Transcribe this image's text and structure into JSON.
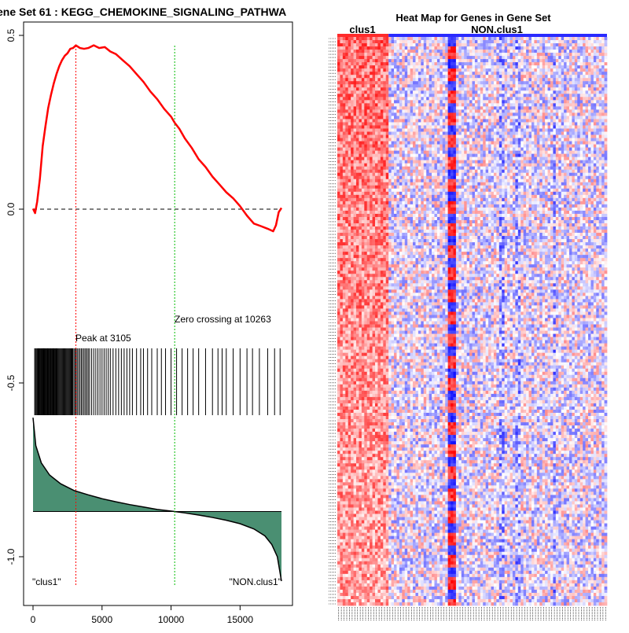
{
  "chart_data": [
    {
      "type": "line",
      "title": "ene Set  61 : KEGG_CHEMOKINE_SIGNALING_PATHWA",
      "xlabel": "",
      "ylabel": "",
      "xlim": [
        0,
        18000
      ],
      "ylim": [
        -1.1,
        0.52
      ],
      "x_ticks": [
        0,
        5000,
        10000,
        15000
      ],
      "y_ticks": [
        -1.0,
        -0.5,
        0.0,
        0.5
      ],
      "y_tick_labels": [
        "-1.0",
        "-0.5",
        "0.0",
        "0.5"
      ],
      "series": [
        {
          "name": "",
          "color": "#ff0000",
          "points": [
            [
              0,
              0
            ],
            [
              150,
              -0.01
            ],
            [
              300,
              0.02
            ],
            [
              500,
              0.09
            ],
            [
              700,
              0.18
            ],
            [
              900,
              0.24
            ],
            [
              1100,
              0.29
            ],
            [
              1300,
              0.33
            ],
            [
              1500,
              0.36
            ],
            [
              1700,
              0.39
            ],
            [
              1900,
              0.41
            ],
            [
              2100,
              0.43
            ],
            [
              2300,
              0.44
            ],
            [
              2500,
              0.45
            ],
            [
              2700,
              0.46
            ],
            [
              2900,
              0.465
            ],
            [
              3105,
              0.47
            ],
            [
              3400,
              0.465
            ],
            [
              3700,
              0.46
            ],
            [
              4000,
              0.465
            ],
            [
              4400,
              0.47
            ],
            [
              4800,
              0.465
            ],
            [
              5200,
              0.465
            ],
            [
              5600,
              0.455
            ],
            [
              6000,
              0.445
            ],
            [
              6500,
              0.43
            ],
            [
              7000,
              0.41
            ],
            [
              7500,
              0.39
            ],
            [
              8000,
              0.365
            ],
            [
              8500,
              0.34
            ],
            [
              9000,
              0.315
            ],
            [
              9500,
              0.29
            ],
            [
              10000,
              0.265
            ],
            [
              10263,
              0.25
            ],
            [
              10600,
              0.23
            ],
            [
              11000,
              0.205
            ],
            [
              11500,
              0.175
            ],
            [
              12000,
              0.145
            ],
            [
              12500,
              0.12
            ],
            [
              13000,
              0.095
            ],
            [
              13500,
              0.07
            ],
            [
              14000,
              0.05
            ],
            [
              14500,
              0.03
            ],
            [
              15000,
              0.01
            ],
            [
              15500,
              -0.02
            ],
            [
              16000,
              -0.04
            ],
            [
              16500,
              -0.05
            ],
            [
              17000,
              -0.055
            ],
            [
              17400,
              -0.065
            ],
            [
              17600,
              -0.045
            ],
            [
              17800,
              -0.01
            ],
            [
              18000,
              0.005
            ]
          ]
        }
      ],
      "reference_lines": {
        "zero_line": 0,
        "peak_x": 3105,
        "zero_crossing_x": 10263,
        "peak_color": "#ff0000",
        "zero_crossing_color": "#00bb00"
      },
      "annotations": {
        "peak": "Peak at 3105",
        "zero_crossing": "Zero crossing at 10263",
        "left_class": "\"clus1\"",
        "right_class": "\"NON.clus1\""
      },
      "hit_positions": [
        120,
        180,
        240,
        300,
        350,
        400,
        450,
        500,
        550,
        600,
        640,
        690,
        740,
        790,
        830,
        880,
        930,
        980,
        1030,
        1080,
        1130,
        1180,
        1230,
        1280,
        1330,
        1380,
        1430,
        1480,
        1530,
        1580,
        1620,
        1680,
        1740,
        1800,
        1860,
        1920,
        1980,
        2040,
        2100,
        2160,
        2220,
        2280,
        2340,
        2400,
        2460,
        2520,
        2580,
        2640,
        2700,
        2760,
        2820,
        2880,
        2960,
        3040,
        3120,
        3200,
        3300,
        3400,
        3500,
        3600,
        3700,
        3800,
        3900,
        4000,
        4100,
        4250,
        4400,
        4550,
        4700,
        4850,
        5000,
        5150,
        5300,
        5450,
        5600,
        5800,
        6000,
        6200,
        6400,
        6600,
        6800,
        7000,
        7200,
        7500,
        7800,
        8000,
        8300,
        8600,
        9000,
        9300,
        9600,
        10000,
        10400,
        10800,
        11200,
        11600,
        12000,
        12500,
        13000,
        13400,
        13700,
        14000,
        14500,
        15000,
        15500,
        15900,
        16400,
        17000,
        17500,
        17900
      ],
      "ranked_metric": {
        "color": "#4a8f72",
        "points": [
          [
            0,
            -0.6
          ],
          [
            200,
            -0.68
          ],
          [
            600,
            -0.73
          ],
          [
            1200,
            -0.765
          ],
          [
            2000,
            -0.79
          ],
          [
            3000,
            -0.81
          ],
          [
            4000,
            -0.822
          ],
          [
            5000,
            -0.833
          ],
          [
            6000,
            -0.842
          ],
          [
            7000,
            -0.85
          ],
          [
            8000,
            -0.857
          ],
          [
            9000,
            -0.864
          ],
          [
            10263,
            -0.87
          ],
          [
            11000,
            -0.874
          ],
          [
            12000,
            -0.88
          ],
          [
            13000,
            -0.887
          ],
          [
            14000,
            -0.895
          ],
          [
            15000,
            -0.905
          ],
          [
            16000,
            -0.92
          ],
          [
            16800,
            -0.94
          ],
          [
            17300,
            -0.965
          ],
          [
            17700,
            -1.0
          ],
          [
            18000,
            -1.07
          ]
        ]
      }
    },
    {
      "type": "heatmap",
      "title": "Heat Map for Genes in Gene Set",
      "groups": [
        "clus1",
        "NON.clus1"
      ],
      "group_colors": [
        "#ff2a2a",
        "#2a2aff"
      ],
      "rows": 180,
      "columns": 100,
      "group_split_column": 19,
      "colors": {
        "high": "#ff0000",
        "mid": "#ffffff",
        "low": "#0000ff"
      }
    }
  ]
}
